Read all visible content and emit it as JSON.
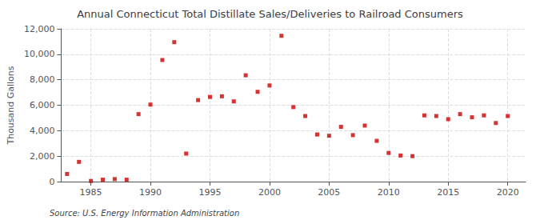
{
  "chart_data": {
    "type": "scatter",
    "title": "Annual Connecticut Total Distillate Sales/Deliveries to Railroad Consumers",
    "ylabel": "Thousand Gallons",
    "source": "Source: U.S. Energy Information Administration",
    "color": "#cc0000",
    "marker": "square",
    "grid": true,
    "x": [
      1983,
      1984,
      1985,
      1986,
      1987,
      1988,
      1989,
      1990,
      1991,
      1992,
      1993,
      1994,
      1995,
      1996,
      1997,
      1998,
      1999,
      2000,
      2001,
      2002,
      2003,
      2004,
      2005,
      2006,
      2007,
      2008,
      2009,
      2010,
      2011,
      2012,
      2013,
      2014,
      2015,
      2016,
      2017,
      2018,
      2019,
      2020
    ],
    "values": [
      600,
      1550,
      50,
      150,
      200,
      150,
      5300,
      6050,
      9550,
      10950,
      2200,
      6400,
      6650,
      6700,
      6300,
      8350,
      7050,
      7550,
      11450,
      5850,
      5150,
      3700,
      3600,
      4300,
      3650,
      4400,
      3200,
      2250,
      2050,
      2000,
      5200,
      5150,
      4900,
      5300,
      5050,
      5200,
      4600,
      5150
    ],
    "xlim": [
      1982.5,
      2021.5
    ],
    "xticks": [
      1985,
      1990,
      1995,
      2000,
      2005,
      2010,
      2015,
      2020
    ],
    "ylim": [
      0,
      12000
    ],
    "yticks": [
      0,
      {
        "value": 2000,
        "label": "2,000"
      },
      {
        "value": 4000,
        "label": "4,000"
      },
      {
        "value": 6000,
        "label": "6,000"
      },
      {
        "value": 8000,
        "label": "8,000"
      },
      {
        "value": 10000,
        "label": "10,000"
      },
      {
        "value": 12000,
        "label": "12,000"
      }
    ]
  }
}
